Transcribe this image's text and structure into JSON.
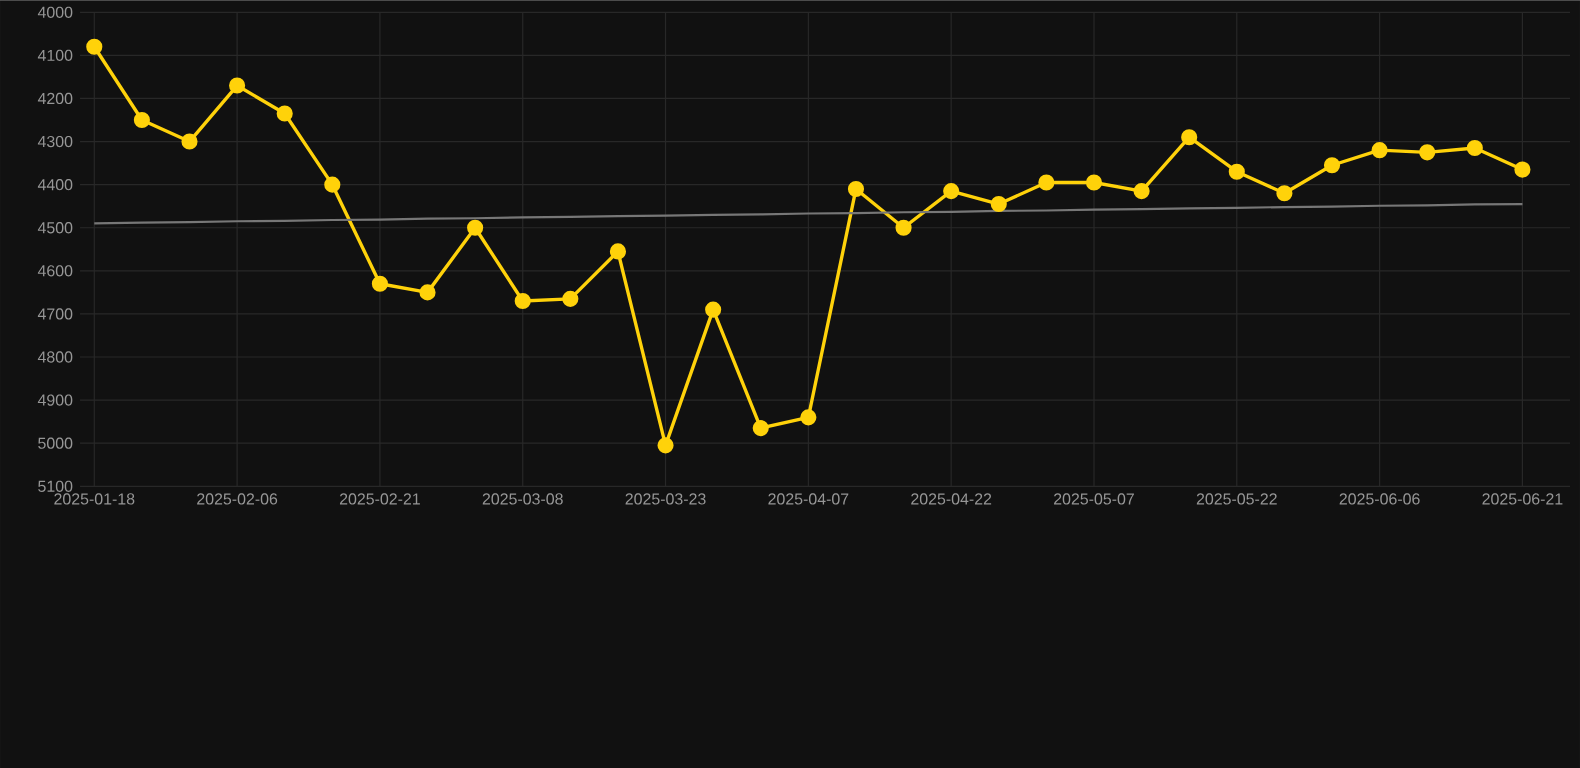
{
  "chart_data": {
    "type": "line",
    "categories": [
      "2025-01-18",
      null,
      null,
      "2025-02-06",
      null,
      null,
      "2025-02-21",
      null,
      null,
      "2025-03-08",
      null,
      null,
      "2025-03-23",
      null,
      null,
      "2025-04-07",
      null,
      null,
      "2025-04-22",
      null,
      null,
      "2025-05-07",
      null,
      null,
      "2025-05-22",
      null,
      null,
      "2025-06-06",
      null,
      null,
      "2025-06-21"
    ],
    "series": [
      {
        "color": "#ffd20a",
        "marker": "circle",
        "values": [
          4080,
          4250,
          4300,
          4170,
          4235,
          4400,
          4630,
          4650,
          4500,
          4670,
          4665,
          4555,
          5005,
          4690,
          4965,
          4940,
          4410,
          4500,
          4415,
          4445,
          4395,
          4395,
          4415,
          4290,
          4370,
          4420,
          4355,
          4320,
          4325,
          4315,
          4365
        ]
      },
      {
        "type": "line",
        "color": "#777777",
        "marker": "none",
        "values": [
          4490,
          4488,
          4487,
          4485,
          4484,
          4482,
          4481,
          4479,
          4478,
          4476,
          4475,
          4473,
          4472,
          4470,
          4469,
          4467,
          4466,
          4464,
          4463,
          4461,
          4460,
          4458,
          4457,
          4455,
          4454,
          4452,
          4451,
          4449,
          4448,
          4446,
          4445
        ]
      }
    ],
    "ylim": [
      5100,
      4000
    ],
    "yticks": [
      4000,
      4100,
      4200,
      4300,
      4400,
      4500,
      4600,
      4700,
      4800,
      4900,
      5000,
      5100
    ],
    "grid": true,
    "line_style": "solid"
  }
}
